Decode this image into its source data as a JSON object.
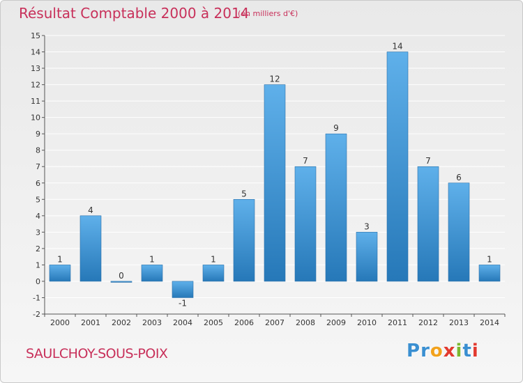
{
  "header": {
    "title": "Résultat Comptable 2000 à 2014",
    "subtitle": "(en milliers d'€)"
  },
  "footer": {
    "commune": "SAULCHOY-SOUS-POIX",
    "brand": "Proxiti",
    "brand_letters": [
      {
        "ch": "P",
        "color": "#3a8fd1"
      },
      {
        "ch": "r",
        "color": "#3a8fd1"
      },
      {
        "ch": "o",
        "color": "#f2a21c"
      },
      {
        "ch": "x",
        "color": "#e23a2f"
      },
      {
        "ch": "i",
        "color": "#7cb82f"
      },
      {
        "ch": "t",
        "color": "#3a8fd1"
      },
      {
        "ch": "i",
        "color": "#e23a2f"
      }
    ]
  },
  "colors": {
    "title": "#c8305a",
    "bar_light": "#5fb0ea",
    "bar_dark": "#2678b8",
    "grid": "#ffffff",
    "axis": "#555555"
  },
  "chart_data": {
    "type": "bar",
    "title": "Résultat Comptable 2000 à 2014",
    "subtitle": "(en milliers d'€)",
    "xlabel": "",
    "ylabel": "",
    "categories": [
      "2000",
      "2001",
      "2002",
      "2003",
      "2004",
      "2005",
      "2006",
      "2007",
      "2008",
      "2009",
      "2010",
      "2011",
      "2012",
      "2013",
      "2014"
    ],
    "values": [
      1,
      4,
      0,
      1,
      -1,
      1,
      5,
      12,
      7,
      9,
      3,
      14,
      7,
      6,
      1
    ],
    "ylim": [
      -2,
      15
    ],
    "yticks": [
      -2,
      -1,
      0,
      1,
      2,
      3,
      4,
      5,
      6,
      7,
      8,
      9,
      10,
      11,
      12,
      13,
      14,
      15
    ],
    "grid": true
  }
}
